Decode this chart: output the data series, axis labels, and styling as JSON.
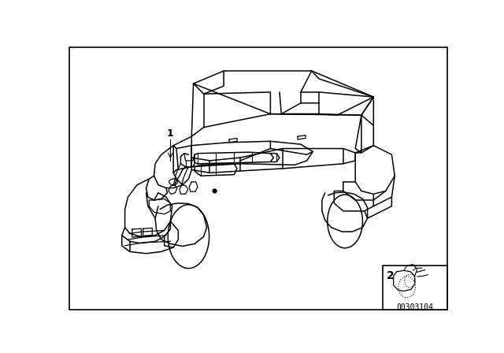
{
  "background_color": "#ffffff",
  "border_color": "#000000",
  "label1": "1",
  "label2": "2",
  "part_number": "00303104",
  "fig_width": 6.4,
  "fig_height": 4.48,
  "dpi": 100,
  "lw": 1.1
}
